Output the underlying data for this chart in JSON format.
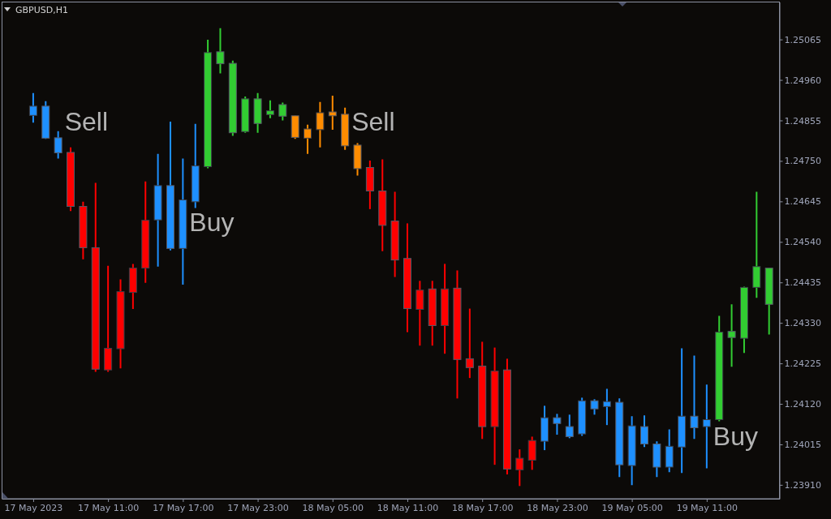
{
  "chart_data": {
    "type": "candlestick",
    "title": "GBPUSD,H1",
    "x": [
      "2023-05-17T05:00",
      "2023-05-17T06:00",
      "2023-05-17T07:00",
      "2023-05-17T08:00",
      "2023-05-17T09:00",
      "2023-05-17T10:00",
      "2023-05-17T11:00",
      "2023-05-17T12:00",
      "2023-05-17T13:00",
      "2023-05-17T14:00",
      "2023-05-17T15:00",
      "2023-05-17T16:00",
      "2023-05-17T17:00",
      "2023-05-17T18:00",
      "2023-05-17T19:00",
      "2023-05-17T20:00",
      "2023-05-17T21:00",
      "2023-05-17T22:00",
      "2023-05-17T23:00",
      "2023-05-18T00:00",
      "2023-05-18T01:00",
      "2023-05-18T02:00",
      "2023-05-18T03:00",
      "2023-05-18T04:00",
      "2023-05-18T05:00",
      "2023-05-18T06:00",
      "2023-05-18T07:00",
      "2023-05-18T08:00",
      "2023-05-18T09:00",
      "2023-05-18T10:00",
      "2023-05-18T11:00",
      "2023-05-18T12:00",
      "2023-05-18T13:00",
      "2023-05-18T14:00",
      "2023-05-18T15:00",
      "2023-05-18T16:00",
      "2023-05-18T17:00",
      "2023-05-18T18:00",
      "2023-05-18T19:00",
      "2023-05-18T20:00",
      "2023-05-18T21:00",
      "2023-05-18T22:00",
      "2023-05-18T23:00",
      "2023-05-19T00:00",
      "2023-05-19T01:00",
      "2023-05-19T02:00",
      "2023-05-19T03:00",
      "2023-05-19T04:00",
      "2023-05-19T05:00",
      "2023-05-19T06:00",
      "2023-05-19T07:00",
      "2023-05-19T08:00",
      "2023-05-19T09:00",
      "2023-05-19T10:00",
      "2023-05-19T11:00",
      "2023-05-19T12:00",
      "2023-05-19T13:00",
      "2023-05-19T14:00",
      "2023-05-19T15:00",
      "2023-05-19T16:00"
    ],
    "ohlc": [
      [
        1.24868,
        1.24926,
        1.24849,
        1.24892
      ],
      [
        1.24892,
        1.24905,
        1.24807,
        1.24809
      ],
      [
        1.2481,
        1.24827,
        1.24756,
        1.24771
      ],
      [
        1.24772,
        1.24785,
        1.2462,
        1.24632
      ],
      [
        1.24632,
        1.24644,
        1.24495,
        1.24525
      ],
      [
        1.24525,
        1.24693,
        1.24203,
        1.2421
      ],
      [
        1.24208,
        1.24478,
        1.24203,
        1.24264
      ],
      [
        1.24263,
        1.24443,
        1.24212,
        1.24411
      ],
      [
        1.24409,
        1.24483,
        1.24366,
        1.24472
      ],
      [
        1.24472,
        1.24697,
        1.24434,
        1.24596
      ],
      [
        1.24597,
        1.24768,
        1.24476,
        1.24686
      ],
      [
        1.24686,
        1.24852,
        1.24518,
        1.24523
      ],
      [
        1.24523,
        1.24756,
        1.24429,
        1.24649
      ],
      [
        1.24644,
        1.24846,
        1.24628,
        1.24737
      ],
      [
        1.24735,
        1.25064,
        1.24731,
        1.25031
      ],
      [
        1.25033,
        1.25094,
        1.24977,
        1.25002
      ],
      [
        1.25003,
        1.2501,
        1.24815,
        1.24823
      ],
      [
        1.24826,
        1.24917,
        1.24823,
        1.24911
      ],
      [
        1.24911,
        1.24926,
        1.24823,
        1.24847
      ],
      [
        1.2487,
        1.24907,
        1.24861,
        1.2488
      ],
      [
        1.24896,
        1.24901,
        1.24855,
        1.24866
      ],
      [
        1.24867,
        1.24867,
        1.24807,
        1.24811
      ],
      [
        1.24809,
        1.24844,
        1.24768,
        1.24833
      ],
      [
        1.24831,
        1.24903,
        1.24785,
        1.24875
      ],
      [
        1.24877,
        1.24919,
        1.24831,
        1.24867
      ],
      [
        1.24871,
        1.24888,
        1.24779,
        1.24789
      ],
      [
        1.24791,
        1.24796,
        1.24712,
        1.2473
      ],
      [
        1.24733,
        1.24751,
        1.24625,
        1.24672
      ],
      [
        1.24672,
        1.24754,
        1.24516,
        1.24583
      ],
      [
        1.24594,
        1.2467,
        1.24449,
        1.24493
      ],
      [
        1.24497,
        1.24588,
        1.24306,
        1.24367
      ],
      [
        1.24365,
        1.24439,
        1.24271,
        1.24415
      ],
      [
        1.24418,
        1.24439,
        1.24271,
        1.24323
      ],
      [
        1.24323,
        1.24483,
        1.2425,
        1.24418
      ],
      [
        1.2442,
        1.24466,
        1.24134,
        1.24235
      ],
      [
        1.24237,
        1.24367,
        1.24187,
        1.24214
      ],
      [
        1.24218,
        1.24281,
        1.24029,
        1.24061
      ],
      [
        1.24061,
        1.24266,
        1.23962,
        1.24205
      ],
      [
        1.24208,
        1.24237,
        1.23937,
        1.23951
      ],
      [
        1.23949,
        1.24002,
        1.23907,
        1.23979
      ],
      [
        1.23974,
        1.24035,
        1.23949,
        1.24025
      ],
      [
        1.24023,
        1.24115,
        1.24,
        1.24084
      ],
      [
        1.24084,
        1.24094,
        1.2404,
        1.24069
      ],
      [
        1.24061,
        1.24092,
        1.24031,
        1.24035
      ],
      [
        1.24042,
        1.24136,
        1.24037,
        1.24128
      ],
      [
        1.24128,
        1.24132,
        1.24092,
        1.24107
      ],
      [
        1.24113,
        1.24159,
        1.24065,
        1.24126
      ],
      [
        1.24124,
        1.24134,
        1.2393,
        1.23962
      ],
      [
        1.2396,
        1.24088,
        1.23909,
        1.24063
      ],
      [
        1.24061,
        1.2409,
        1.24008,
        1.24016
      ],
      [
        1.24016,
        1.24023,
        1.2393,
        1.23956
      ],
      [
        1.23956,
        1.24054,
        1.23943,
        1.2401
      ],
      [
        1.24008,
        1.24264,
        1.23941,
        1.24088
      ],
      [
        1.24088,
        1.24245,
        1.24029,
        1.24058
      ],
      [
        1.24061,
        1.2417,
        1.23953,
        1.24079
      ],
      [
        1.24079,
        1.24348,
        1.24075,
        1.24306
      ],
      [
        1.24308,
        1.24378,
        1.24216,
        1.24292
      ],
      [
        1.2429,
        1.24424,
        1.24252,
        1.24422
      ],
      [
        1.24422,
        1.2467,
        1.24395,
        1.24476
      ],
      [
        1.24472,
        1.24472,
        1.243,
        1.24378
      ]
    ],
    "colors": [
      "#1e90ff",
      "#1e90ff",
      "#1e90ff",
      "#ff0000",
      "#ff0000",
      "#ff0000",
      "#ff0000",
      "#ff0000",
      "#ff0000",
      "#ff0000",
      "#1e90ff",
      "#1e90ff",
      "#1e90ff",
      "#1e90ff",
      "#32cd32",
      "#32cd32",
      "#32cd32",
      "#32cd32",
      "#32cd32",
      "#32cd32",
      "#32cd32",
      "#ff8c00",
      "#ff8c00",
      "#ff8c00",
      "#ff8c00",
      "#ff8c00",
      "#ff8c00",
      "#ff0000",
      "#ff0000",
      "#ff0000",
      "#ff0000",
      "#ff0000",
      "#ff0000",
      "#ff0000",
      "#ff0000",
      "#ff0000",
      "#ff0000",
      "#ff0000",
      "#ff0000",
      "#ff0000",
      "#ff0000",
      "#1e90ff",
      "#1e90ff",
      "#1e90ff",
      "#1e90ff",
      "#1e90ff",
      "#1e90ff",
      "#1e90ff",
      "#1e90ff",
      "#1e90ff",
      "#1e90ff",
      "#1e90ff",
      "#1e90ff",
      "#1e90ff",
      "#1e90ff",
      "#32cd32",
      "#32cd32",
      "#32cd32",
      "#32cd32",
      "#32cd32"
    ],
    "xlim": [
      "2023-05-17T02:30",
      "2023-05-19T16:50"
    ],
    "xticks": [
      {
        "value": "2023-05-17T05:00",
        "label": "17 May 2023"
      },
      {
        "value": "2023-05-17T11:00",
        "label": "17 May 11:00"
      },
      {
        "value": "2023-05-17T17:00",
        "label": "17 May 17:00"
      },
      {
        "value": "2023-05-17T23:00",
        "label": "17 May 23:00"
      },
      {
        "value": "2023-05-18T05:00",
        "label": "18 May 05:00"
      },
      {
        "value": "2023-05-18T11:00",
        "label": "18 May 11:00"
      },
      {
        "value": "2023-05-18T17:00",
        "label": "18 May 17:00"
      },
      {
        "value": "2023-05-18T23:00",
        "label": "18 May 23:00"
      },
      {
        "value": "2023-05-19T05:00",
        "label": "19 May 05:00"
      },
      {
        "value": "2023-05-19T11:00",
        "label": "19 May 11:00"
      }
    ],
    "ylim": [
      1.23874,
      1.25162
    ],
    "yticks": [
      {
        "value": 1.2391,
        "label": "1.23910"
      },
      1.24015,
      {
        "value": 1.2412,
        "label": "1.24120"
      },
      1.24225,
      {
        "value": 1.2433,
        "label": "1.24330"
      },
      1.24435,
      {
        "value": 1.2454,
        "label": "1.24540"
      },
      1.24645,
      {
        "value": 1.2475,
        "label": "1.24750"
      },
      1.24855,
      {
        "value": 1.2496,
        "label": "1.24960"
      },
      1.25065
    ],
    "annotations": [
      "Sell",
      "Buy",
      "Sell",
      "Buy"
    ]
  }
}
